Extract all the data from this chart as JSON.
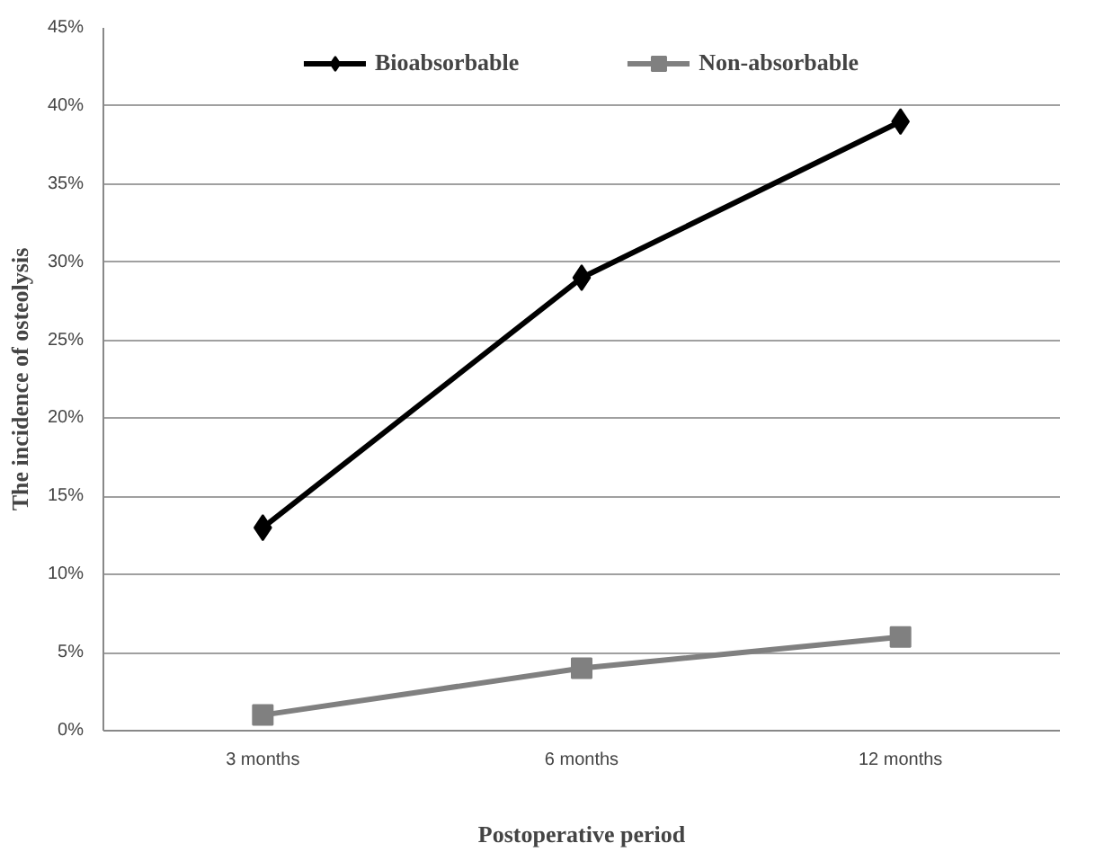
{
  "chart_data": {
    "type": "line",
    "xlabel": "Postoperative period",
    "ylabel": "The incidence of osteolysis",
    "categories": [
      "3 months",
      "6 months",
      "12 months"
    ],
    "series": [
      {
        "name": "Bioabsorbable",
        "color": "#000000",
        "values": [
          13,
          29,
          39
        ],
        "marker": "diamond"
      },
      {
        "name": "Non-absorbable",
        "color": "#808080",
        "values": [
          1,
          4,
          6
        ],
        "marker": "square"
      }
    ],
    "ylim": [
      0,
      45
    ],
    "yticks": [
      {
        "value": 0,
        "label": "0%"
      },
      {
        "value": 5,
        "label": "5%"
      },
      {
        "value": 10,
        "label": "10%"
      },
      {
        "value": 15,
        "label": "15%"
      },
      {
        "value": 20,
        "label": "20%"
      },
      {
        "value": 25,
        "label": "25%"
      },
      {
        "value": 30,
        "label": "30%"
      },
      {
        "value": 35,
        "label": "35%"
      },
      {
        "value": 40,
        "label": "40%"
      },
      {
        "value": 45,
        "label": "45%"
      }
    ],
    "grid": "y",
    "legend": "top",
    "line_style": "solid"
  }
}
